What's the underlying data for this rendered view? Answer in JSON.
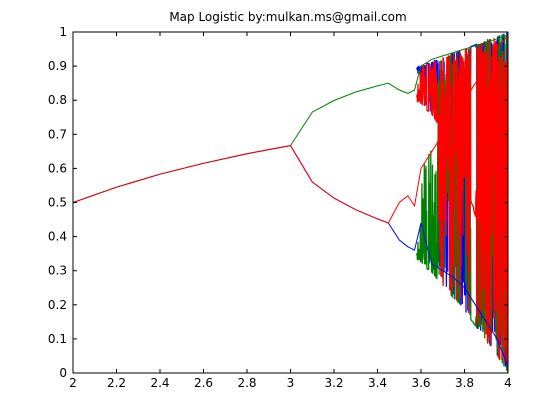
{
  "chart_data": {
    "type": "line",
    "title": "Map Logistic by:mulkan.ms@gmail.com",
    "xlabel": "",
    "ylabel": "",
    "xlim": [
      2,
      4
    ],
    "ylim": [
      0,
      1
    ],
    "x_ticks": [
      "2",
      "2.2",
      "2.4",
      "2.6",
      "2.8",
      "3",
      "3.2",
      "3.4",
      "3.6",
      "3.8",
      "4"
    ],
    "y_ticks": [
      "0",
      "0.1",
      "0.2",
      "0.3",
      "0.4",
      "0.5",
      "0.6",
      "0.7",
      "0.8",
      "0.9",
      "1"
    ],
    "grid": false,
    "legend": false,
    "series": [
      {
        "color": "#0000ff",
        "x": [
          2.0,
          2.2,
          2.4,
          2.6,
          2.8,
          3.0,
          3.1,
          3.2,
          3.3,
          3.4,
          3.45,
          3.5,
          3.54,
          3.57,
          3.6,
          3.65,
          3.7,
          3.75,
          3.8,
          3.85,
          3.9,
          3.95,
          4.0
        ],
        "y": [
          0.5,
          0.545,
          0.583,
          0.615,
          0.643,
          0.667,
          0.56,
          0.513,
          0.479,
          0.452,
          0.44,
          0.39,
          0.37,
          0.36,
          0.44,
          0.32,
          0.3,
          0.28,
          0.25,
          0.2,
          0.15,
          0.1,
          0.02
        ]
      },
      {
        "color": "#008000",
        "x": [
          2.0,
          2.2,
          2.4,
          2.6,
          2.8,
          3.0,
          3.1,
          3.2,
          3.3,
          3.4,
          3.45,
          3.5,
          3.54,
          3.57,
          3.6,
          3.65,
          3.7,
          3.75,
          3.8,
          3.85,
          3.9,
          3.95,
          4.0
        ],
        "y": [
          0.5,
          0.545,
          0.583,
          0.615,
          0.643,
          0.667,
          0.765,
          0.799,
          0.824,
          0.842,
          0.85,
          0.83,
          0.82,
          0.83,
          0.9,
          0.92,
          0.93,
          0.94,
          0.95,
          0.96,
          0.97,
          0.98,
          0.99
        ]
      },
      {
        "color": "#ff0000",
        "x": [
          2.0,
          2.2,
          2.4,
          2.6,
          2.8,
          3.0,
          3.1,
          3.2,
          3.3,
          3.4,
          3.45,
          3.5,
          3.54,
          3.57,
          3.6,
          3.65,
          3.7,
          3.75,
          3.8,
          3.85,
          3.9,
          3.95,
          4.0
        ],
        "y": [
          0.5,
          0.545,
          0.583,
          0.615,
          0.643,
          0.667,
          0.56,
          0.513,
          0.479,
          0.452,
          0.44,
          0.5,
          0.52,
          0.49,
          0.6,
          0.65,
          0.7,
          0.75,
          0.8,
          0.85,
          0.9,
          0.95,
          0.99
        ]
      }
    ]
  }
}
